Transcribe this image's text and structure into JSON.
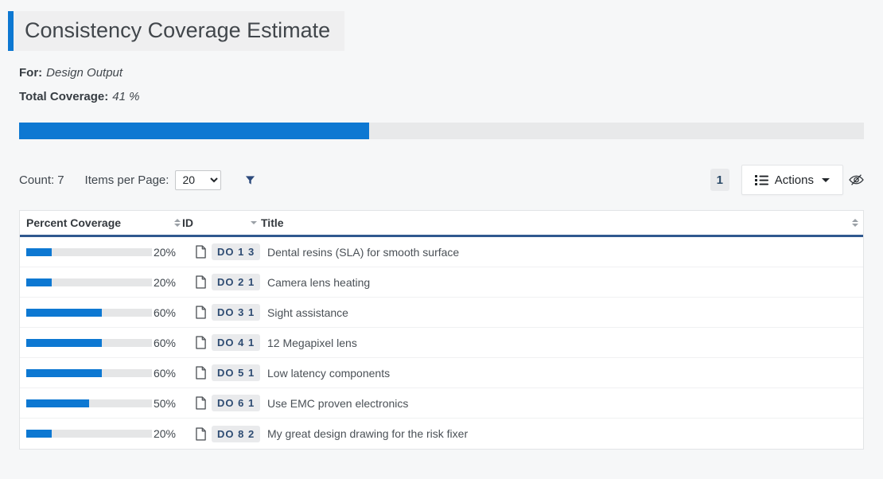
{
  "colors": {
    "accent_blue": "#0d78d2",
    "header_underline": "#30598f",
    "badge_bg": "#e9eaec",
    "badge_text": "#2d4b72",
    "track_gray": "#e8e9ea"
  },
  "header": {
    "title": "Consistency Coverage Estimate"
  },
  "meta": {
    "for_label": "For:",
    "for_value": "Design Output",
    "total_label": "Total Coverage:",
    "total_value": "41 %",
    "total_percent": 41.4
  },
  "toolbar": {
    "count_label": "Count:",
    "count_value": "7",
    "items_per_page_label": "Items per Page:",
    "items_per_page_value": "20",
    "page_number": "1",
    "actions_label": "Actions"
  },
  "icons": {
    "filter": "funnel",
    "actions_menu": "list-bullets",
    "actions_caret": "caret-down",
    "visibility_toggle": "eye-slash",
    "row_document": "document-page",
    "sort_unsorted": "triangles-up-down",
    "sort_sorted": "triangle-down"
  },
  "table": {
    "columns": [
      {
        "label": "Percent Coverage",
        "sort_state": "unsorted"
      },
      {
        "label": "ID",
        "sort_state": "sorted-down"
      },
      {
        "label": "Title",
        "sort_state": "unsorted"
      }
    ],
    "rows": [
      {
        "percent": 20,
        "percent_label": "20%",
        "id": "DO 1 3",
        "title": "Dental resins (SLA) for smooth surface"
      },
      {
        "percent": 20,
        "percent_label": "20%",
        "id": "DO 2 1",
        "title": "Camera lens heating"
      },
      {
        "percent": 60,
        "percent_label": "60%",
        "id": "DO 3 1",
        "title": "Sight assistance"
      },
      {
        "percent": 60,
        "percent_label": "60%",
        "id": "DO 4 1",
        "title": "12 Megapixel lens"
      },
      {
        "percent": 60,
        "percent_label": "60%",
        "id": "DO 5 1",
        "title": "Low latency components"
      },
      {
        "percent": 50,
        "percent_label": "50%",
        "id": "DO 6 1",
        "title": "Use EMC proven electronics"
      },
      {
        "percent": 20,
        "percent_label": "20%",
        "id": "DO 8 2",
        "title": "My great design drawing for the risk fixer"
      }
    ]
  }
}
